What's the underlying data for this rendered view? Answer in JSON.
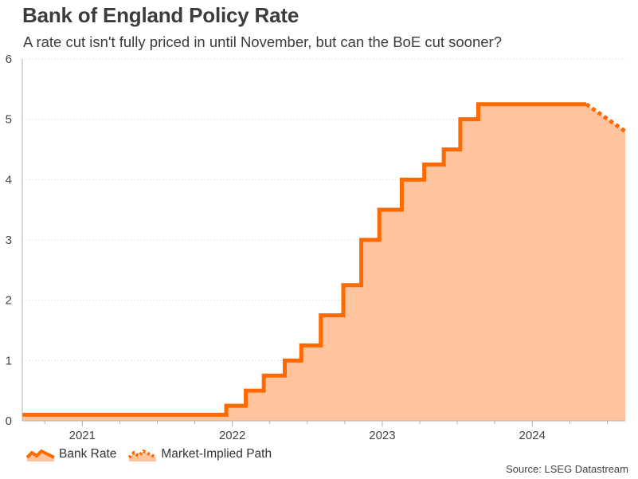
{
  "title": "Bank of England Policy Rate",
  "subtitle": "A rate cut isn't fully priced in until November, but can the BoE cut sooner?",
  "source": "Source: LSEG Datastream",
  "colors": {
    "bank_rate": "#ff6a00",
    "fill": "#ffc49e",
    "grid": "#e6e6e6",
    "axis": "#b0b0b0"
  },
  "chart_data": {
    "type": "line",
    "title": "Bank of England Policy Rate",
    "xlabel": "",
    "ylabel": "",
    "ylim": [
      0,
      6
    ],
    "yticks": [
      0,
      1,
      2,
      3,
      4,
      5,
      6
    ],
    "xlim": [
      2020.6,
      2024.62
    ],
    "xtick_labels": [
      {
        "x": 2021.0,
        "label": "2021"
      },
      {
        "x": 2022.0,
        "label": "2022"
      },
      {
        "x": 2023.0,
        "label": "2023"
      },
      {
        "x": 2024.0,
        "label": "2024"
      }
    ],
    "grid": true,
    "legend": "bottom-left",
    "series": [
      {
        "name": "Bank Rate",
        "style": "step",
        "points": [
          [
            2020.6,
            0.1
          ],
          [
            2021.96,
            0.1
          ],
          [
            2021.96,
            0.25
          ],
          [
            2022.09,
            0.25
          ],
          [
            2022.09,
            0.5
          ],
          [
            2022.21,
            0.5
          ],
          [
            2022.21,
            0.75
          ],
          [
            2022.35,
            0.75
          ],
          [
            2022.35,
            1.0
          ],
          [
            2022.46,
            1.0
          ],
          [
            2022.46,
            1.25
          ],
          [
            2022.59,
            1.25
          ],
          [
            2022.59,
            1.75
          ],
          [
            2022.74,
            1.75
          ],
          [
            2022.74,
            2.25
          ],
          [
            2022.86,
            2.25
          ],
          [
            2022.86,
            3.0
          ],
          [
            2022.98,
            3.0
          ],
          [
            2022.98,
            3.5
          ],
          [
            2023.13,
            3.5
          ],
          [
            2023.13,
            4.0
          ],
          [
            2023.28,
            4.0
          ],
          [
            2023.28,
            4.25
          ],
          [
            2023.41,
            4.25
          ],
          [
            2023.41,
            4.5
          ],
          [
            2023.52,
            4.5
          ],
          [
            2023.52,
            5.0
          ],
          [
            2023.64,
            5.0
          ],
          [
            2023.64,
            5.25
          ],
          [
            2024.36,
            5.25
          ]
        ]
      },
      {
        "name": "Market-Implied Path",
        "style": "dotted",
        "points": [
          [
            2024.36,
            5.25
          ],
          [
            2024.62,
            4.8
          ]
        ]
      }
    ]
  }
}
